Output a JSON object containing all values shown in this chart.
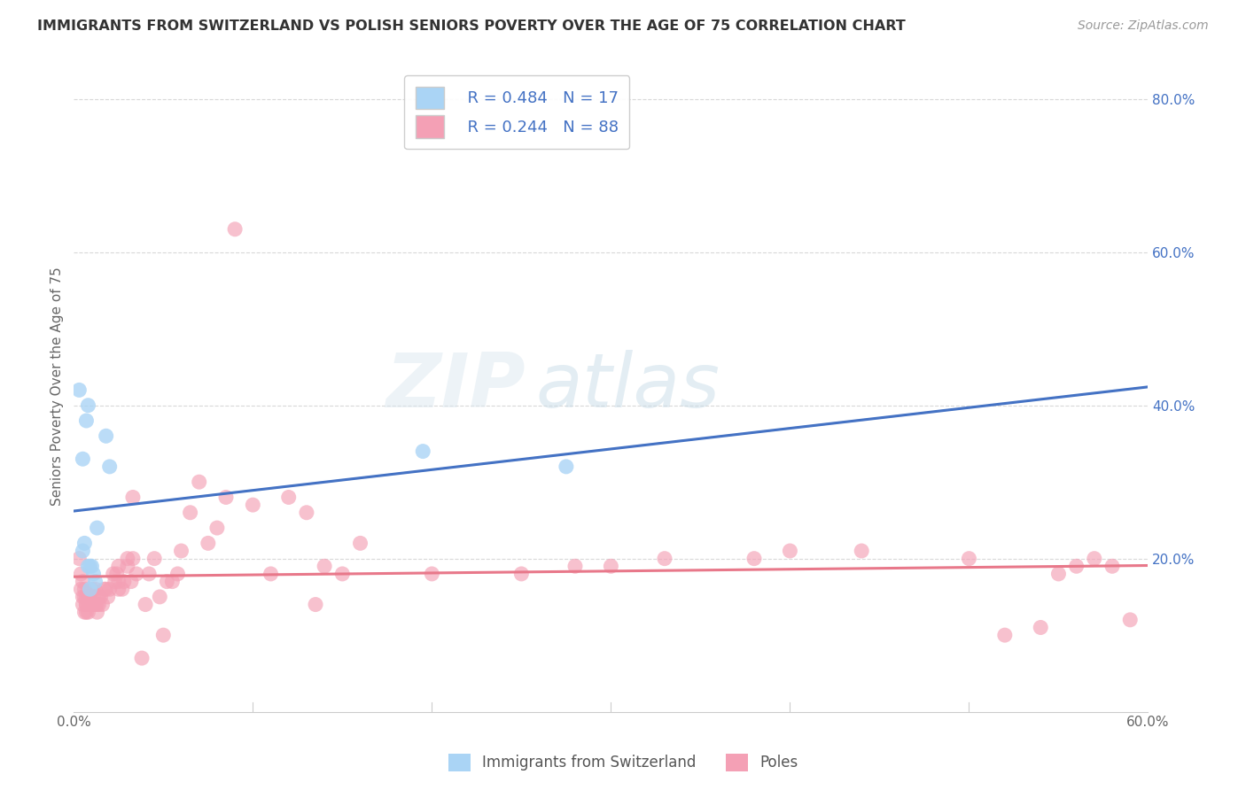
{
  "title": "IMMIGRANTS FROM SWITZERLAND VS POLISH SENIORS POVERTY OVER THE AGE OF 75 CORRELATION CHART",
  "source": "Source: ZipAtlas.com",
  "ylabel": "Seniors Poverty Over the Age of 75",
  "xlim": [
    0.0,
    0.6
  ],
  "ylim": [
    0.0,
    0.85
  ],
  "xtick_left_label": "0.0%",
  "xtick_right_label": "60.0%",
  "yticks_right": [
    0.2,
    0.4,
    0.6,
    0.8
  ],
  "ytick_labels_right": [
    "20.0%",
    "40.0%",
    "60.0%",
    "80.0%"
  ],
  "legend_r1": "R = 0.484",
  "legend_n1": "N = 17",
  "legend_r2": "R = 0.244",
  "legend_n2": "N = 88",
  "legend_label1": "Immigrants from Switzerland",
  "legend_label2": "Poles",
  "color_swiss": "#aad4f5",
  "color_poles": "#f4a0b5",
  "trendline_color_swiss": "#4472c4",
  "trendline_color_poles": "#e8788a",
  "dashed_line_color": "#b8d4e8",
  "watermark_line1": "ZIP",
  "watermark_line2": "atlas",
  "swiss_x": [
    0.003,
    0.005,
    0.005,
    0.006,
    0.007,
    0.008,
    0.008,
    0.009,
    0.009,
    0.01,
    0.011,
    0.012,
    0.013,
    0.018,
    0.02,
    0.195,
    0.275
  ],
  "swiss_y": [
    0.42,
    0.33,
    0.21,
    0.22,
    0.38,
    0.4,
    0.19,
    0.19,
    0.16,
    0.19,
    0.18,
    0.17,
    0.24,
    0.36,
    0.32,
    0.34,
    0.32
  ],
  "poles_x": [
    0.003,
    0.004,
    0.004,
    0.005,
    0.005,
    0.005,
    0.006,
    0.006,
    0.006,
    0.007,
    0.007,
    0.007,
    0.007,
    0.008,
    0.008,
    0.008,
    0.009,
    0.009,
    0.01,
    0.01,
    0.011,
    0.011,
    0.012,
    0.012,
    0.013,
    0.013,
    0.014,
    0.014,
    0.015,
    0.016,
    0.017,
    0.018,
    0.019,
    0.02,
    0.022,
    0.023,
    0.024,
    0.025,
    0.025,
    0.025,
    0.027,
    0.028,
    0.03,
    0.03,
    0.032,
    0.033,
    0.033,
    0.035,
    0.038,
    0.04,
    0.042,
    0.045,
    0.048,
    0.05,
    0.052,
    0.055,
    0.058,
    0.06,
    0.065,
    0.07,
    0.075,
    0.08,
    0.085,
    0.09,
    0.1,
    0.11,
    0.12,
    0.13,
    0.135,
    0.14,
    0.15,
    0.16,
    0.2,
    0.25,
    0.28,
    0.3,
    0.33,
    0.38,
    0.4,
    0.44,
    0.5,
    0.52,
    0.54,
    0.55,
    0.56,
    0.57,
    0.58,
    0.59
  ],
  "poles_y": [
    0.2,
    0.16,
    0.18,
    0.17,
    0.15,
    0.14,
    0.16,
    0.15,
    0.13,
    0.15,
    0.14,
    0.14,
    0.13,
    0.15,
    0.14,
    0.13,
    0.15,
    0.14,
    0.16,
    0.14,
    0.15,
    0.14,
    0.16,
    0.14,
    0.14,
    0.13,
    0.15,
    0.14,
    0.15,
    0.14,
    0.16,
    0.16,
    0.15,
    0.16,
    0.18,
    0.17,
    0.18,
    0.19,
    0.17,
    0.16,
    0.16,
    0.17,
    0.2,
    0.19,
    0.17,
    0.2,
    0.28,
    0.18,
    0.07,
    0.14,
    0.18,
    0.2,
    0.15,
    0.1,
    0.17,
    0.17,
    0.18,
    0.21,
    0.26,
    0.3,
    0.22,
    0.24,
    0.28,
    0.63,
    0.27,
    0.18,
    0.28,
    0.26,
    0.14,
    0.19,
    0.18,
    0.22,
    0.18,
    0.18,
    0.19,
    0.19,
    0.2,
    0.2,
    0.21,
    0.21,
    0.2,
    0.1,
    0.11,
    0.18,
    0.19,
    0.2,
    0.19,
    0.12
  ],
  "grid_color": "#d8d8d8",
  "spine_color": "#cccccc",
  "tick_label_color": "#666666",
  "right_tick_color": "#4472c4",
  "title_color": "#333333",
  "source_color": "#999999",
  "ylabel_color": "#666666"
}
